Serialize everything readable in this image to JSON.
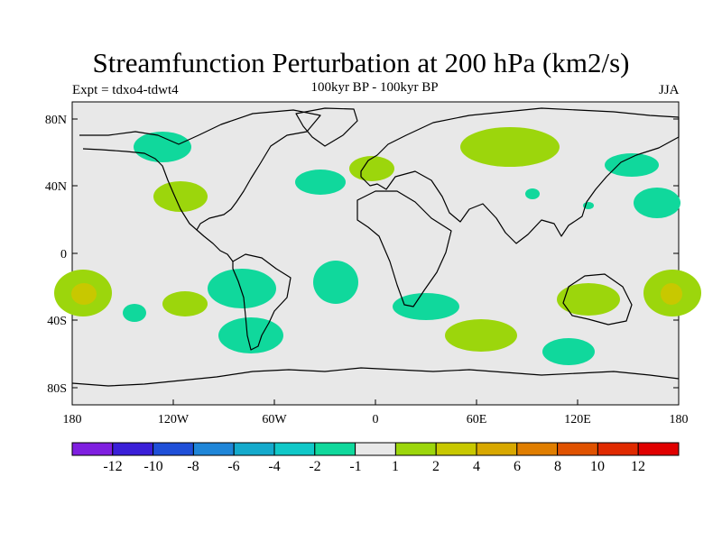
{
  "title": "Streamfunction Perturbation at 200 hPa (km2/s)",
  "left_label": "Expt = tdxo4-tdwt4",
  "center_label": "100kyr BP - 100kyr BP",
  "right_label": "JJA",
  "y_ticks": [
    "80N",
    "40N",
    "0",
    "40S",
    "80S"
  ],
  "x_ticks": [
    "180",
    "120W",
    "60W",
    "0",
    "60E",
    "120E",
    "180"
  ],
  "colorbar": {
    "labels": [
      "-12",
      "-10",
      "-8",
      "-6",
      "-4",
      "-2",
      "-1",
      "1",
      "2",
      "4",
      "6",
      "8",
      "10",
      "12"
    ],
    "colors": [
      "#7f1fe0",
      "#3a1fd8",
      "#1f4fd8",
      "#1f86d8",
      "#14aacc",
      "#10c8c8",
      "#10d89c",
      "#e8e8e8",
      "#9cd60c",
      "#c8c800",
      "#d8a800",
      "#e07e00",
      "#e05200",
      "#e02a00",
      "#e00000"
    ]
  },
  "map": {
    "ocean_color": "#e8e8e8",
    "coastline_color": "#000000",
    "extent": {
      "lon": [
        -180,
        180
      ],
      "lat": [
        -90,
        90
      ]
    }
  }
}
